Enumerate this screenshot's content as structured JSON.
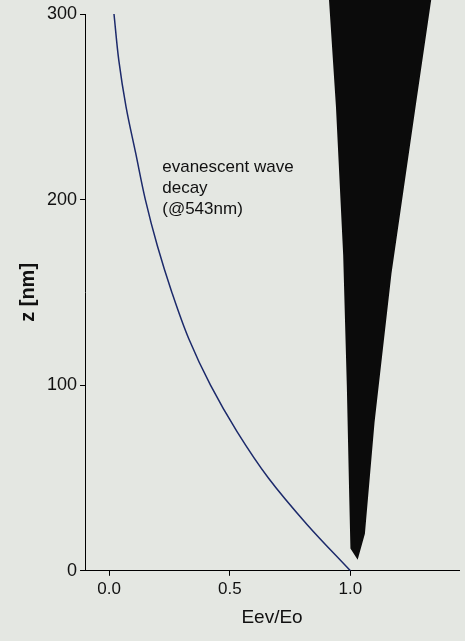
{
  "chart_data": {
    "type": "line",
    "x_label": "Eev/Eo",
    "y_label": "z [nm]",
    "annotation": [
      "evanescent wave",
      "decay",
      "(@543nm)"
    ],
    "x": [
      1.0,
      0.82,
      0.66,
      0.53,
      0.42,
      0.33,
      0.26,
      0.2,
      0.15,
      0.11,
      0.07,
      0.04,
      0.02
    ],
    "values": [
      0,
      25,
      50,
      75,
      100,
      125,
      150,
      175,
      200,
      225,
      250,
      275,
      300
    ],
    "color": "#1c2a6b",
    "xlim": [
      -0.1,
      1.45
    ],
    "xticks": [
      {
        "value": 0,
        "label": "0.0"
      },
      {
        "value": 0.5,
        "label": "0.5"
      },
      {
        "value": 1,
        "label": "1.0"
      }
    ],
    "ylim": [
      0,
      300
    ],
    "yticks": [
      0,
      100,
      200,
      300
    ],
    "grid": false
  }
}
